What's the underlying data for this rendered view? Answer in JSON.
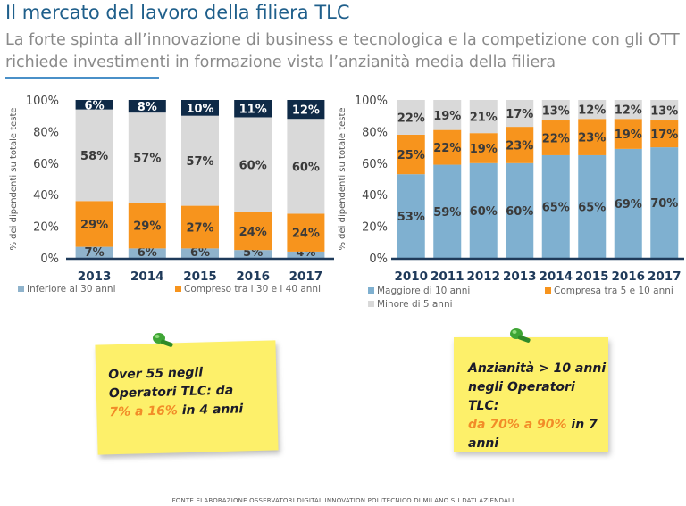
{
  "title": "Il mercato del lavoro della filiera TLC",
  "subtitle": "La forte spinta all’innovazione di business e tecnologica e la competizione con gli OTT richiede investimenti in formazione vista l’anzianità media della filiera",
  "chart_data": [
    {
      "type": "bar",
      "stacked": true,
      "ylabel": "% dei dipendenti su totale teste",
      "ylim": [
        0,
        100
      ],
      "yticks": [
        "0%",
        "20%",
        "40%",
        "60%",
        "80%",
        "100%"
      ],
      "categories": [
        "2013",
        "2014",
        "2015",
        "2016",
        "2017"
      ],
      "series": [
        {
          "name": "Inferiore ai 30 anni",
          "color": "#8fb3cc",
          "values": [
            7,
            6,
            6,
            5,
            4
          ],
          "labels": [
            "7%",
            "6%",
            "6%",
            "5%",
            "4%"
          ]
        },
        {
          "name": "Compreso tra i 30 e i 40 anni",
          "color": "#f7941d",
          "values": [
            29,
            29,
            27,
            24,
            24
          ],
          "labels": [
            "29%",
            "29%",
            "27%",
            "24%",
            "24%"
          ]
        },
        {
          "name": "",
          "color": "#d9d9d9",
          "values": [
            58,
            57,
            57,
            60,
            60
          ],
          "labels": [
            "58%",
            "57%",
            "57%",
            "60%",
            "60%"
          ]
        },
        {
          "name": "",
          "color": "#0f2a47",
          "values": [
            6,
            8,
            10,
            11,
            12
          ],
          "labels": [
            "6%",
            "8%",
            "10%",
            "11%",
            "12%"
          ]
        }
      ],
      "legend": "bottom"
    },
    {
      "type": "bar",
      "stacked": true,
      "ylabel": "% dei dipendenti su totale teste",
      "ylim": [
        0,
        100
      ],
      "yticks": [
        "0%",
        "20%",
        "40%",
        "60%",
        "80%",
        "100%"
      ],
      "categories": [
        "2010",
        "2011",
        "2012",
        "2013",
        "2014",
        "2015",
        "2016",
        "2017"
      ],
      "series": [
        {
          "name": "Maggiore di 10 anni",
          "color": "#7fb0d0",
          "values": [
            53,
            59,
            60,
            60,
            65,
            65,
            69,
            70
          ],
          "labels": [
            "53%",
            "59%",
            "60%",
            "60%",
            "65%",
            "65%",
            "69%",
            "70%"
          ]
        },
        {
          "name": "Compresa tra 5 e 10 anni",
          "color": "#f7941d",
          "values": [
            25,
            22,
            19,
            23,
            22,
            23,
            19,
            17
          ],
          "labels": [
            "25%",
            "22%",
            "19%",
            "23%",
            "22%",
            "23%",
            "19%",
            "17%"
          ]
        },
        {
          "name": "Minore di 5 anni",
          "color": "#d9d9d9",
          "values": [
            22,
            19,
            21,
            17,
            13,
            12,
            12,
            13
          ],
          "labels": [
            "22%",
            "19%",
            "21%",
            "17%",
            "13%",
            "12%",
            "12%",
            "13%"
          ]
        }
      ],
      "legend": "bottom"
    }
  ],
  "notes": [
    {
      "line1": "Over 55 negli",
      "line2": "Operatori TLC: da",
      "highlight": "7% a 16%",
      "tail": " in 4 anni"
    },
    {
      "line1": "Anzianità > 10 anni",
      "line2": "negli Operatori TLC:",
      "highlight": "da 70% a 90%",
      "tail": " in 7",
      "line4": "anni"
    }
  ],
  "source": "FONTE ELABORAZIONE OSSERVATORI DIGITAL INNOVATION POLITECNICO DI MILANO SU DATI AZIENDALI"
}
